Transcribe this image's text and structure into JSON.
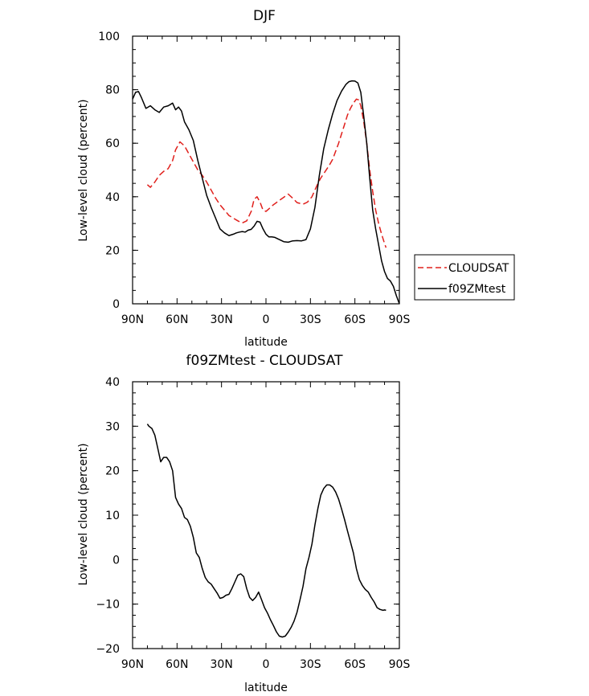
{
  "chart_data": [
    {
      "type": "line",
      "title": "DJF",
      "xlabel": "latitude",
      "ylabel": "Low-level cloud (percent)",
      "xlim": [
        90,
        -90
      ],
      "ylim": [
        0,
        100
      ],
      "xticks": [
        90,
        60,
        30,
        0,
        -30,
        -60,
        -90
      ],
      "xtick_labels": [
        "90N",
        "60N",
        "30N",
        "0",
        "30S",
        "60S",
        "90S"
      ],
      "yticks": [
        0,
        20,
        40,
        60,
        80,
        100
      ],
      "ytick_labels": [
        "0",
        "20",
        "40",
        "60",
        "80",
        "100"
      ],
      "legend_position": "outside-right",
      "series": [
        {
          "name": "CLOUDSAT",
          "color": "#e0201c",
          "dash": "dashed",
          "x": [
            80,
            78,
            75,
            72,
            69,
            66,
            63,
            61,
            58,
            55,
            52,
            49,
            46,
            43,
            40,
            37,
            34,
            31,
            28,
            25,
            22,
            19,
            16,
            13,
            10,
            8,
            6,
            4,
            2,
            0,
            -2,
            -5,
            -10,
            -15,
            -18,
            -21,
            -25,
            -28,
            -31,
            -33,
            -35,
            -37,
            -40,
            -43,
            -45,
            -47,
            -49,
            -51,
            -53,
            -55,
            -57,
            -59,
            -61,
            -62.5,
            -64,
            -66,
            -68,
            -70,
            -72,
            -74,
            -76,
            -78,
            -80,
            -81
          ],
          "y": [
            44.5,
            43.5,
            45.5,
            48,
            49.5,
            50.5,
            53.5,
            57.5,
            60.5,
            59,
            56,
            53,
            50,
            48,
            45.5,
            42.5,
            39.5,
            37,
            35,
            33,
            32,
            31,
            30.2,
            31,
            34.5,
            39,
            40,
            38,
            35,
            34.5,
            35.5,
            37,
            39,
            41,
            39.5,
            37.8,
            37.2,
            38,
            40,
            42.5,
            45,
            47,
            49.5,
            52,
            54,
            57,
            60,
            63.5,
            67,
            70.5,
            73,
            75,
            76.5,
            76.2,
            74,
            68,
            60,
            50,
            42,
            35,
            30,
            26,
            22.5,
            21
          ]
        },
        {
          "name": "f09ZMtest",
          "color": "#000000",
          "dash": "solid",
          "x": [
            90,
            88,
            86,
            84,
            81,
            78,
            75,
            72,
            69,
            66,
            63,
            61,
            59,
            57,
            55,
            52,
            49,
            46,
            43,
            40,
            37,
            34,
            31,
            28,
            25,
            22,
            20,
            18,
            16,
            14,
            12,
            10,
            8,
            6,
            4,
            2,
            0,
            -2,
            -4,
            -6,
            -9,
            -12,
            -15,
            -18,
            -21,
            -24,
            -27,
            -30,
            -33,
            -36,
            -39,
            -42,
            -45,
            -48,
            -51,
            -54,
            -56,
            -58,
            -60,
            -62,
            -64,
            -66,
            -68,
            -70,
            -72,
            -74,
            -76,
            -78,
            -80,
            -82,
            -84,
            -86,
            -88,
            -90
          ],
          "y": [
            76.5,
            79,
            79.3,
            77,
            73,
            74,
            72.5,
            71.5,
            73.5,
            74,
            75,
            72.5,
            73.5,
            72,
            68,
            65,
            61,
            53.5,
            47,
            40.5,
            36,
            32,
            28,
            26.5,
            25.5,
            26,
            26.5,
            26.8,
            27,
            26.8,
            27.5,
            27.8,
            29,
            30.8,
            30.5,
            28,
            26,
            25,
            25,
            24.8,
            24,
            23.2,
            23,
            23.5,
            23.6,
            23.5,
            24,
            28,
            36,
            48,
            58,
            65,
            71,
            76,
            79.5,
            82,
            83,
            83.3,
            83.2,
            82.5,
            79,
            70,
            60,
            47,
            35,
            28,
            22,
            16,
            12,
            9.5,
            8.5,
            6.5,
            3,
            0
          ]
        }
      ]
    },
    {
      "type": "line",
      "title": "f09ZMtest - CLOUDSAT",
      "xlabel": "latitude",
      "ylabel": "Low-level cloud (percent)",
      "xlim": [
        90,
        -90
      ],
      "ylim": [
        -20,
        40
      ],
      "xticks": [
        90,
        60,
        30,
        0,
        -30,
        -60,
        -90
      ],
      "xtick_labels": [
        "90N",
        "60N",
        "30N",
        "0",
        "30S",
        "60S",
        "90S"
      ],
      "yticks": [
        -20,
        -10,
        0,
        10,
        20,
        30,
        40
      ],
      "ytick_labels": [
        "−20",
        "−10",
        "0",
        "10",
        "20",
        "30",
        "40"
      ],
      "series": [
        {
          "name": "",
          "color": "#000000",
          "dash": "solid",
          "x": [
            80,
            79,
            77,
            75,
            73,
            71,
            69,
            67,
            65,
            63,
            61,
            59,
            57,
            55,
            53,
            51,
            49,
            47,
            45,
            43,
            41,
            39,
            37,
            35,
            33,
            31,
            29,
            27,
            25,
            23,
            21,
            19,
            17,
            15,
            13,
            11,
            9,
            7,
            5,
            3,
            1,
            -1,
            -3,
            -5,
            -7,
            -9,
            -11,
            -13,
            -15,
            -17,
            -19,
            -21,
            -23,
            -25,
            -27,
            -29,
            -31,
            -33,
            -35,
            -37,
            -39,
            -41,
            -43,
            -45,
            -47,
            -49,
            -51,
            -53,
            -55,
            -57,
            -59,
            -61,
            -63,
            -65,
            -67,
            -69,
            -71,
            -73,
            -75,
            -77,
            -79,
            -80,
            -81
          ],
          "y": [
            30.5,
            30,
            29.5,
            28,
            25,
            22,
            23,
            23,
            22,
            20,
            14,
            12.5,
            11.5,
            9.5,
            9,
            7.5,
            5,
            1.5,
            0.5,
            -2,
            -4,
            -5,
            -5.5,
            -6.5,
            -7.5,
            -8.7,
            -8.5,
            -8,
            -7.8,
            -6.5,
            -5,
            -3.5,
            -3.2,
            -3.8,
            -6.5,
            -8.5,
            -9.2,
            -8.5,
            -7.3,
            -9,
            -10.8,
            -12,
            -13.5,
            -14.8,
            -16.2,
            -17.2,
            -17.4,
            -17.2,
            -16.3,
            -15.2,
            -13.8,
            -11.8,
            -9,
            -6,
            -2,
            0.5,
            3.5,
            7.8,
            11.5,
            14.5,
            16,
            16.8,
            16.8,
            16.3,
            15.2,
            13.6,
            11.4,
            9,
            6.5,
            4,
            1.5,
            -2,
            -4.5,
            -5.8,
            -6.7,
            -7.3,
            -8.5,
            -9.5,
            -10.8,
            -11.2,
            -11.4,
            -11.3,
            -11.4
          ]
        }
      ]
    }
  ]
}
